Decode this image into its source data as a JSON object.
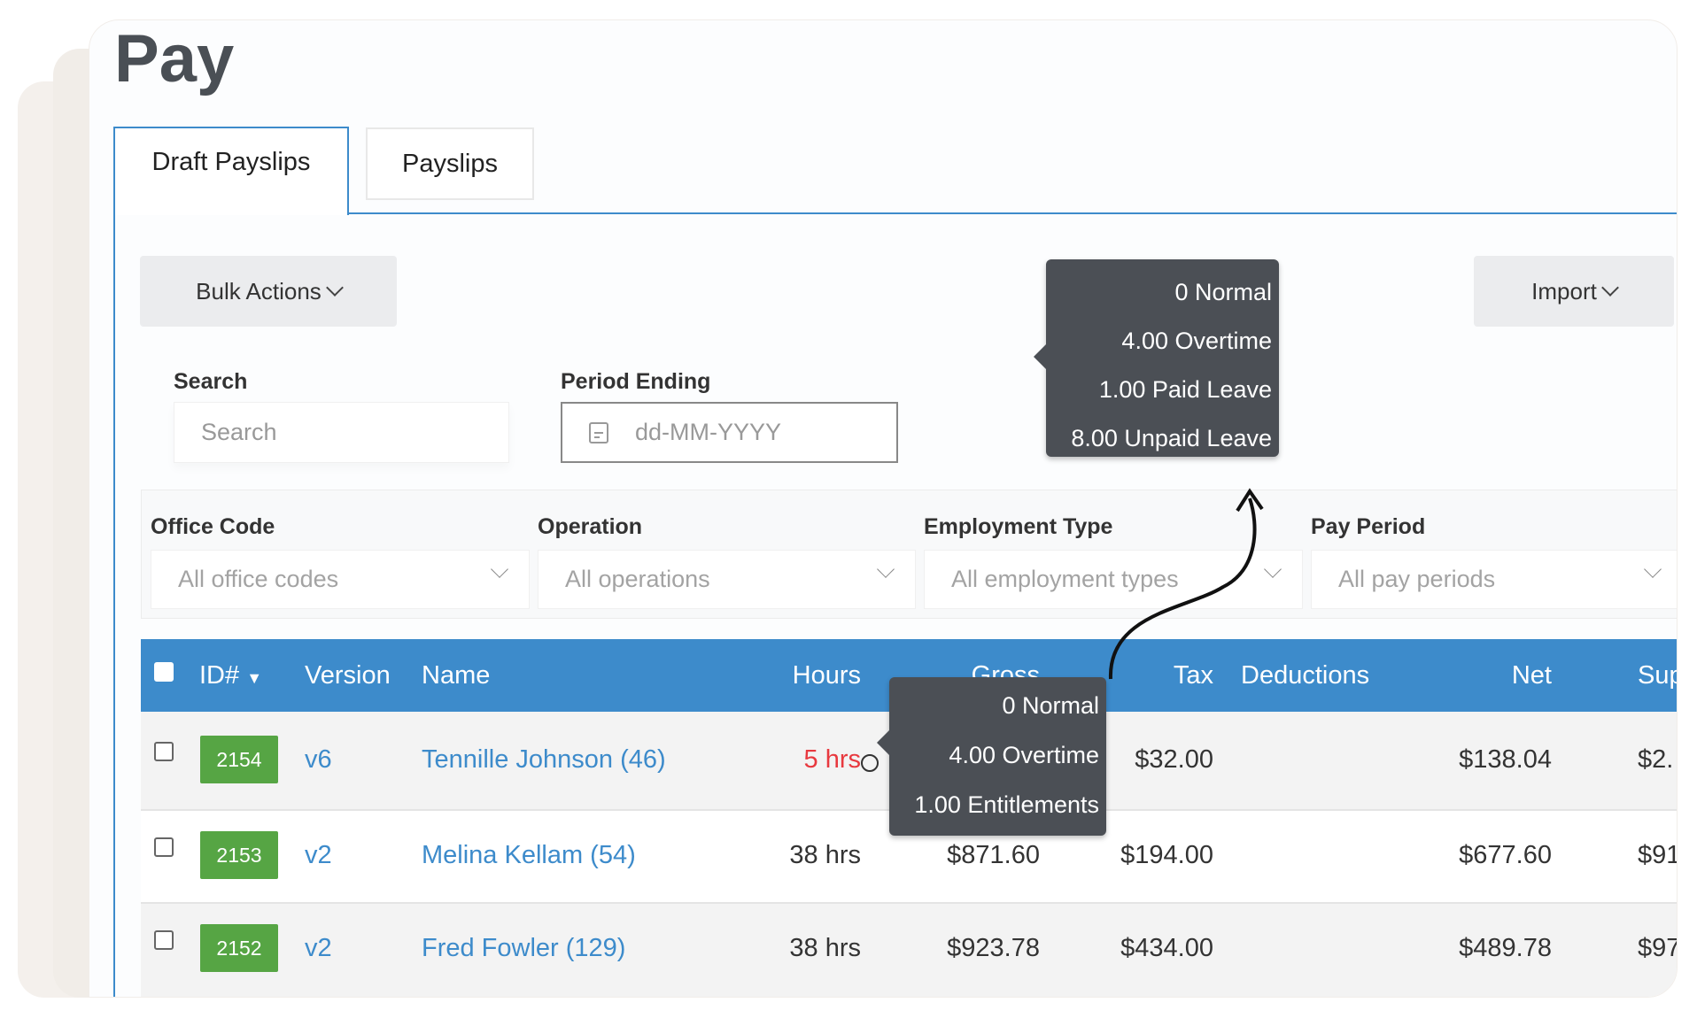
{
  "page": {
    "title": "Pay"
  },
  "tabs": [
    {
      "label": "Draft Payslips",
      "active": true
    },
    {
      "label": "Payslips",
      "active": false
    }
  ],
  "toolbar": {
    "bulk_actions": "Bulk Actions",
    "import": "Import"
  },
  "filters": {
    "search": {
      "label": "Search",
      "placeholder": "Search"
    },
    "period_ending": {
      "label": "Period Ending",
      "placeholder": "dd-MM-YYYY"
    },
    "office_code": {
      "label": "Office Code",
      "value": "All office codes"
    },
    "operation": {
      "label": "Operation",
      "value": "All operations"
    },
    "employment_type": {
      "label": "Employment Type",
      "value": "All employment types"
    },
    "pay_period": {
      "label": "Pay Period",
      "value": "All pay periods"
    }
  },
  "tooltip_top": [
    "0 Normal",
    "4.00 Overtime",
    "1.00 Paid Leave",
    "8.00 Unpaid Leave"
  ],
  "tooltip_row": [
    "0 Normal",
    "4.00 Overtime",
    "1.00 Entitlements"
  ],
  "table": {
    "columns": [
      "ID#",
      "Version",
      "Name",
      "Hours",
      "Gross",
      "Tax",
      "Deductions",
      "Net",
      "Sup"
    ],
    "rows": [
      {
        "id": "2154",
        "version": "v6",
        "name": "Tennille Johnson (46)",
        "hours": "5 hrs",
        "gross": "",
        "tax": "$32.00",
        "deductions": "",
        "net": "$138.04",
        "sup": "$2."
      },
      {
        "id": "2153",
        "version": "v2",
        "name": "Melina Kellam (54)",
        "hours": "38 hrs",
        "gross": "$871.60",
        "tax": "$194.00",
        "deductions": "",
        "net": "$677.60",
        "sup": "$91."
      },
      {
        "id": "2152",
        "version": "v2",
        "name": "Fred Fowler (129)",
        "hours": "38 hrs",
        "gross": "$923.78",
        "tax": "$434.00",
        "deductions": "",
        "net": "$489.78",
        "sup": "$97."
      }
    ]
  },
  "colors": {
    "accent": "#3d8bcb",
    "id_badge": "#56a544",
    "warning": "#e8393f",
    "tooltip": "#4b4f55"
  }
}
